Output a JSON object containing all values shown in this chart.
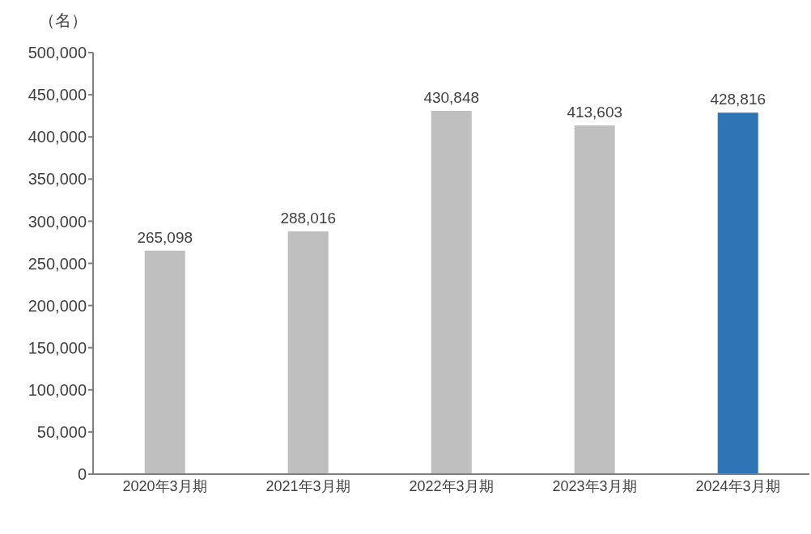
{
  "chart_data": {
    "type": "bar",
    "ylabel": "（名）",
    "categories": [
      "2020年3月期",
      "2021年3月期",
      "2022年3月期",
      "2023年3月期",
      "2024年3月期"
    ],
    "values": [
      265098,
      288016,
      430848,
      413603,
      428816
    ],
    "value_labels": [
      "265,098",
      "288,016",
      "430,848",
      "413,603",
      "428,816"
    ],
    "colors": [
      "#bfbfbf",
      "#bfbfbf",
      "#bfbfbf",
      "#bfbfbf",
      "#2e75b6"
    ],
    "ylim": [
      0,
      500000
    ],
    "yticks": [
      0,
      {
        "value": 50000,
        "label": "50,000"
      },
      {
        "value": 100000,
        "label": "100,000"
      },
      {
        "value": 150000,
        "label": "150,000"
      },
      {
        "value": 200000,
        "label": "200,000"
      },
      {
        "value": 250000,
        "label": "250,000"
      },
      {
        "value": 300000,
        "label": "300,000"
      },
      {
        "value": 350000,
        "label": "350,000"
      },
      {
        "value": 400000,
        "label": "400,000"
      },
      {
        "value": 450000,
        "label": "450,000"
      },
      {
        "value": 500000,
        "label": "500,000"
      }
    ],
    "grid": false
  }
}
